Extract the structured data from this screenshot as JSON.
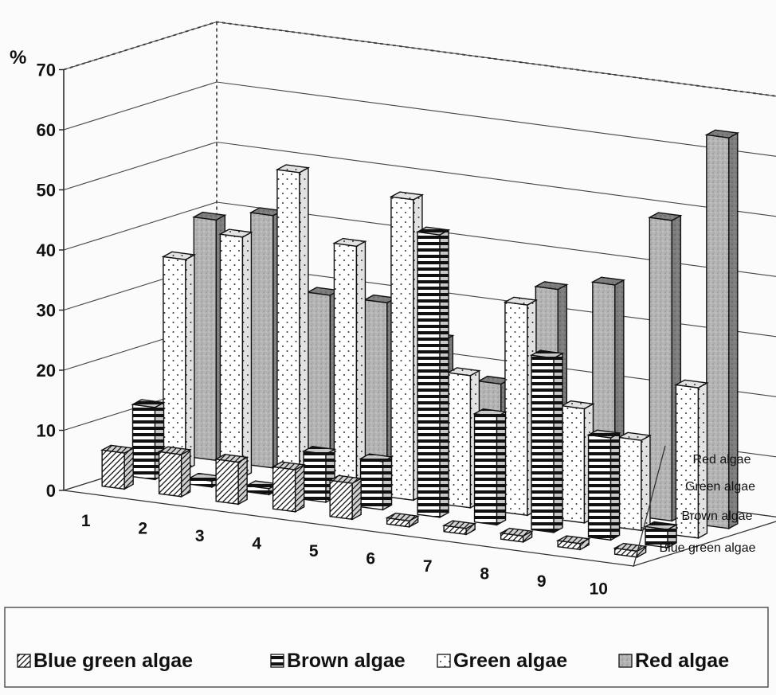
{
  "chart_data": {
    "type": "bar",
    "variant": "3d-column",
    "title": "",
    "unit_label": "%",
    "ylim": [
      0,
      70
    ],
    "yticks": [
      0,
      10,
      20,
      30,
      40,
      50,
      60,
      70
    ],
    "grid": true,
    "legend_position": "bottom",
    "categories": [
      "1",
      "2",
      "3",
      "4",
      "5",
      "6",
      "7",
      "8",
      "9",
      "10"
    ],
    "series": [
      {
        "name": "Blue green algae",
        "pattern": "diagonal-hatch",
        "values": [
          6,
          7,
          7,
          7,
          6,
          1,
          1,
          1,
          1,
          1
        ]
      },
      {
        "name": "Brown algae",
        "pattern": "horizontal-lines",
        "values": [
          12,
          1,
          1,
          8,
          8,
          47,
          18,
          29,
          17,
          3
        ]
      },
      {
        "name": "Green algae",
        "pattern": "dotted",
        "values": [
          35,
          40,
          52,
          41,
          50,
          22,
          35,
          19,
          15,
          25
        ]
      },
      {
        "name": "Red algae",
        "pattern": "grey-stipple",
        "values": [
          40,
          42,
          30,
          30,
          25,
          19,
          36,
          38,
          50,
          65
        ]
      }
    ],
    "depth_axis_labels": [
      "Red algae",
      "Green algae",
      "Brown algae",
      "Blue green algae"
    ]
  }
}
